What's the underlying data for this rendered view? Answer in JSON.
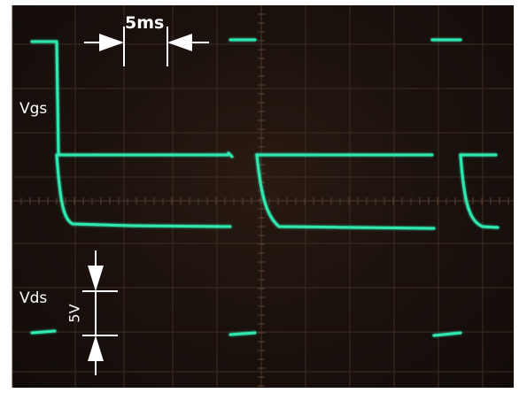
{
  "labels": {
    "time_division": "5ms",
    "voltage_division": "5V",
    "channel_1": "Vgs",
    "channel_2": "Vds"
  },
  "colors": {
    "trace": "#2ee8b0",
    "graticule": "#3a2b22",
    "annotation": "#ffffff",
    "screen_background": "#1c120d"
  }
}
